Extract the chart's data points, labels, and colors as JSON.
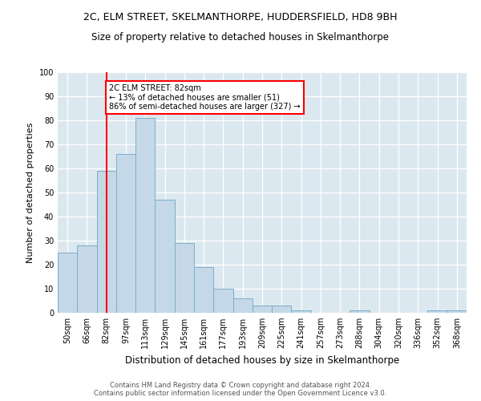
{
  "title1": "2C, ELM STREET, SKELMANTHORPE, HUDDERSFIELD, HD8 9BH",
  "title2": "Size of property relative to detached houses in Skelmanthorpe",
  "xlabel": "Distribution of detached houses by size in Skelmanthorpe",
  "ylabel": "Number of detached properties",
  "categories": [
    "50sqm",
    "66sqm",
    "82sqm",
    "97sqm",
    "113sqm",
    "129sqm",
    "145sqm",
    "161sqm",
    "177sqm",
    "193sqm",
    "209sqm",
    "225sqm",
    "241sqm",
    "257sqm",
    "273sqm",
    "288sqm",
    "304sqm",
    "320sqm",
    "336sqm",
    "352sqm",
    "368sqm"
  ],
  "values": [
    25,
    28,
    59,
    66,
    81,
    47,
    29,
    19,
    10,
    6,
    3,
    3,
    1,
    0,
    0,
    1,
    0,
    0,
    0,
    1,
    1
  ],
  "bar_color": "#c5d8e8",
  "bar_edge_color": "#7aaec8",
  "vline_color": "red",
  "annotation_line1": "2C ELM STREET: 82sqm",
  "annotation_line2": "← 13% of detached houses are smaller (51)",
  "annotation_line3": "86% of semi-detached houses are larger (327) →",
  "annotation_box_color": "white",
  "annotation_box_edge": "red",
  "ylim": [
    0,
    100
  ],
  "yticks": [
    0,
    10,
    20,
    30,
    40,
    50,
    60,
    70,
    80,
    90,
    100
  ],
  "background_color": "#dce8f0",
  "footnote1": "Contains HM Land Registry data © Crown copyright and database right 2024.",
  "footnote2": "Contains public sector information licensed under the Open Government Licence v3.0."
}
